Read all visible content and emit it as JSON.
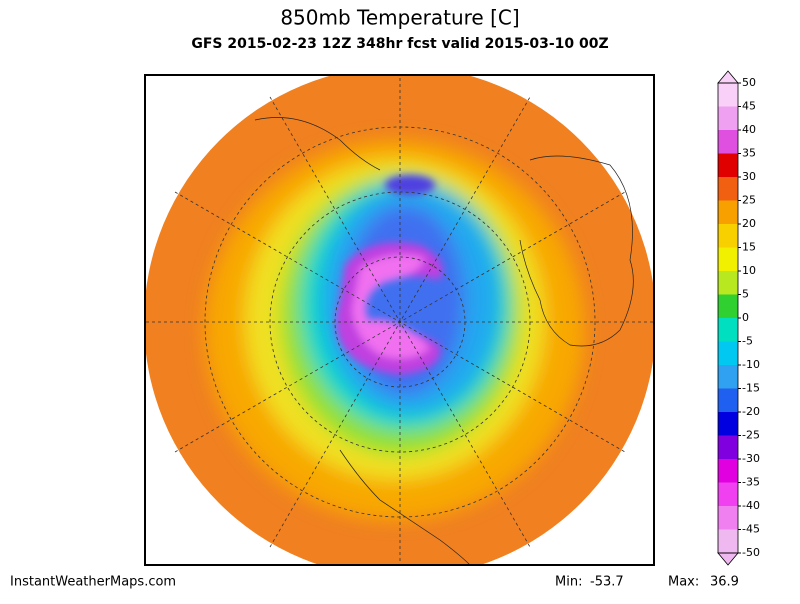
{
  "header": {
    "title": "850mb Temperature [C]",
    "subtitle": "GFS 2015-02-23 12Z 348hr fcst valid 2015-03-10 00Z"
  },
  "colorbar": {
    "ticks": [
      50,
      45,
      40,
      35,
      30,
      25,
      20,
      15,
      10,
      5,
      0,
      -5,
      -10,
      -15,
      -20,
      -25,
      -30,
      -35,
      -40,
      -45,
      -50
    ],
    "colors": [
      "#f8d0f8",
      "#f0a0f0",
      "#e050e0",
      "#e00000",
      "#f06010",
      "#f8a000",
      "#f8d000",
      "#f0f000",
      "#b8e820",
      "#30d030",
      "#00e0c0",
      "#00c8f0",
      "#30a0f0",
      "#2060f0",
      "#0000e0",
      "#8000e0",
      "#e000e0",
      "#f040f0",
      "#f080f0",
      "#f0b8f0"
    ]
  },
  "footer": {
    "site": "InstantWeatherMaps.com",
    "min_label": "Min:",
    "min": -53.7,
    "max_label": "Max:",
    "max": 36.9
  }
}
